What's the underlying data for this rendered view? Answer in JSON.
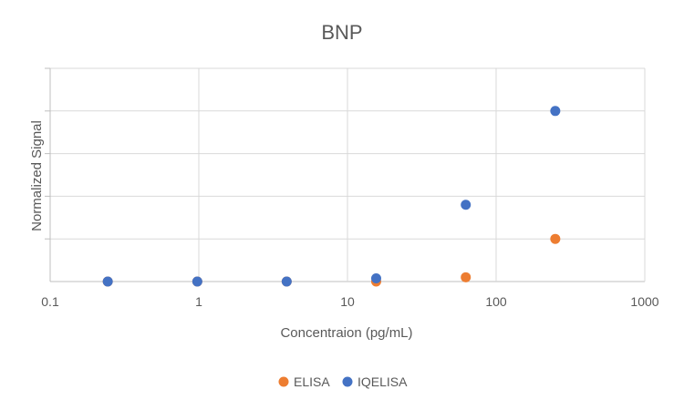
{
  "chart_data": {
    "type": "scatter",
    "title": "BNP",
    "xlabel": "Concentraion (pg/mL)",
    "ylabel": "Normalized Signal",
    "x_scale": "log",
    "xlim": [
      0.1,
      1000
    ],
    "x_ticks": [
      "0.1",
      "1",
      "10",
      "100",
      "1000"
    ],
    "ylim": [
      0,
      1
    ],
    "y_gridlines": 5,
    "y_tick_labels_shown": false,
    "grid": true,
    "legend_position": "bottom",
    "series": [
      {
        "name": "ELISA",
        "color": "#ED7D31",
        "x": [
          0.244,
          0.977,
          3.9,
          15.6,
          62.5,
          250
        ],
        "y": [
          0.0,
          0.0,
          0.0,
          0.0,
          0.02,
          0.2
        ]
      },
      {
        "name": "IQELISA",
        "color": "#4472C4",
        "x": [
          0.244,
          0.977,
          3.9,
          15.6,
          62.5,
          250
        ],
        "y": [
          0.0,
          0.0,
          0.0,
          0.015,
          0.36,
          0.8
        ]
      }
    ]
  }
}
